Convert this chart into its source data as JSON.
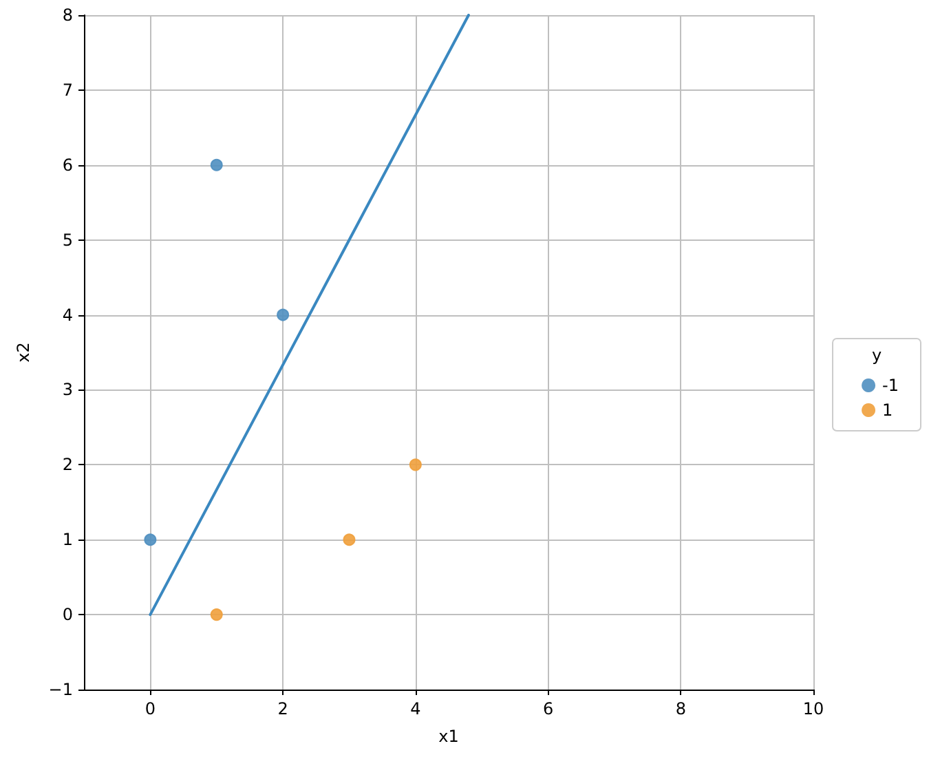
{
  "chart_data": {
    "type": "scatter",
    "xlabel": "x1",
    "ylabel": "x2",
    "legend_title": "y",
    "series": [
      {
        "name": "-1",
        "color": "#4f8fc0",
        "marker": "circle",
        "x": [
          1,
          2,
          0
        ],
        "values": [
          6,
          4,
          1
        ]
      },
      {
        "name": "1",
        "color": "#f0a03c",
        "marker": "circle",
        "x": [
          1,
          3,
          4
        ],
        "values": [
          0,
          1,
          2
        ]
      },
      {
        "type": "line",
        "color": "#3a88c0",
        "x": [
          0,
          4.8
        ],
        "values": [
          0,
          8
        ]
      }
    ],
    "xlim": [
      -1,
      10
    ],
    "xticks": [
      0,
      2,
      4,
      6,
      8,
      10
    ],
    "ylim": [
      -1,
      8
    ],
    "yticks": [
      {
        "value": -1,
        "label": "−1"
      },
      0,
      1,
      2,
      3,
      4,
      5,
      6,
      7,
      8
    ],
    "grid": true,
    "legend": "right"
  }
}
